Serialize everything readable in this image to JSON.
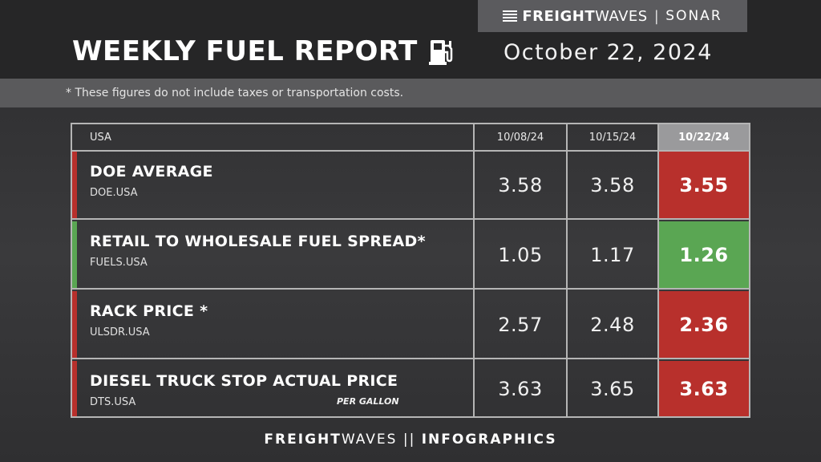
{
  "brand": {
    "freight": "FREIGHT",
    "waves": "WAVES",
    "separator": "|",
    "sonar": "SONAR"
  },
  "title": "WEEKLY FUEL REPORT",
  "date": "October 22, 2024",
  "note": "* These figures do not include taxes or transportation costs.",
  "table": {
    "region": "USA",
    "columns": [
      "10/08/24",
      "10/15/24",
      "10/22/24"
    ],
    "rows": [
      {
        "label": "DOE AVERAGE",
        "code": "DOE.USA",
        "unit": "",
        "values": [
          "3.58",
          "3.58",
          "3.55"
        ],
        "trend": "down",
        "color": "#b8302c"
      },
      {
        "label": "RETAIL TO WHOLESALE FUEL SPREAD*",
        "code": "FUELS.USA",
        "unit": "",
        "values": [
          "1.05",
          "1.17",
          "1.26"
        ],
        "trend": "up",
        "color": "#5aa653"
      },
      {
        "label": "RACK PRICE *",
        "code": "ULSDR.USA",
        "unit": "",
        "values": [
          "2.57",
          "2.48",
          "2.36"
        ],
        "trend": "down",
        "color": "#b8302c"
      },
      {
        "label": "DIESEL TRUCK STOP ACTUAL PRICE",
        "code": "DTS.USA",
        "unit": "PER GALLON",
        "values": [
          "3.63",
          "3.65",
          "3.63"
        ],
        "trend": "down",
        "color": "#b8302c"
      }
    ]
  },
  "colors": {
    "current_header_bg": "#9a9a9c",
    "down": "#b8302c",
    "up": "#5aa653"
  },
  "icons": {
    "title_icon": "fuel-pump-icon",
    "brand_icon": "freightwaves-logo-icon"
  },
  "footer": {
    "freight": "FREIGHT",
    "waves": "WAVES",
    "separator": " || ",
    "infographics": "INFOGRAPHICS"
  }
}
